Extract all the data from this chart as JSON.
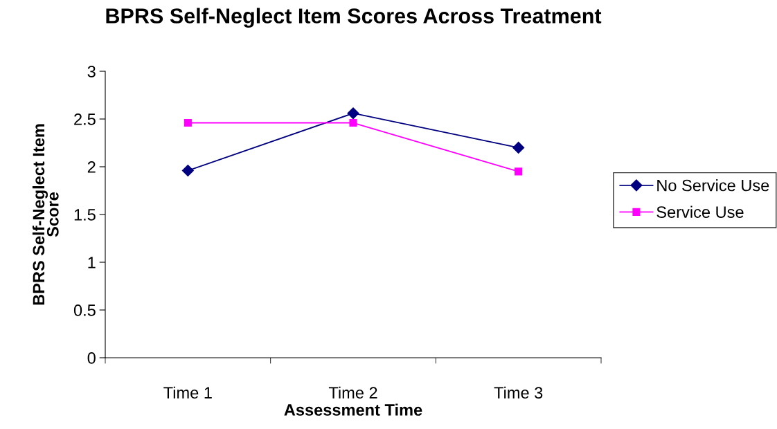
{
  "chart_data": {
    "type": "line",
    "title": "BPRS Self-Neglect Item Scores Across Treatment",
    "xlabel": "Assessment Time",
    "ylabel": "BPRS Self-Neglect Item\nScore",
    "categories": [
      "Time 1",
      "Time 2",
      "Time 3"
    ],
    "series": [
      {
        "name": "No Service Use",
        "color": "#000080",
        "values": [
          1.96,
          2.56,
          2.2
        ],
        "marker": "diamond"
      },
      {
        "name": "Service Use",
        "color": "#ff00ff",
        "values": [
          2.46,
          2.46,
          1.95
        ],
        "marker": "square"
      }
    ],
    "ylim": [
      0,
      3
    ],
    "yticks": [
      0,
      0.5,
      1,
      1.5,
      2,
      2.5,
      3
    ],
    "grid": false,
    "legend": "right",
    "line_style": "solid"
  }
}
